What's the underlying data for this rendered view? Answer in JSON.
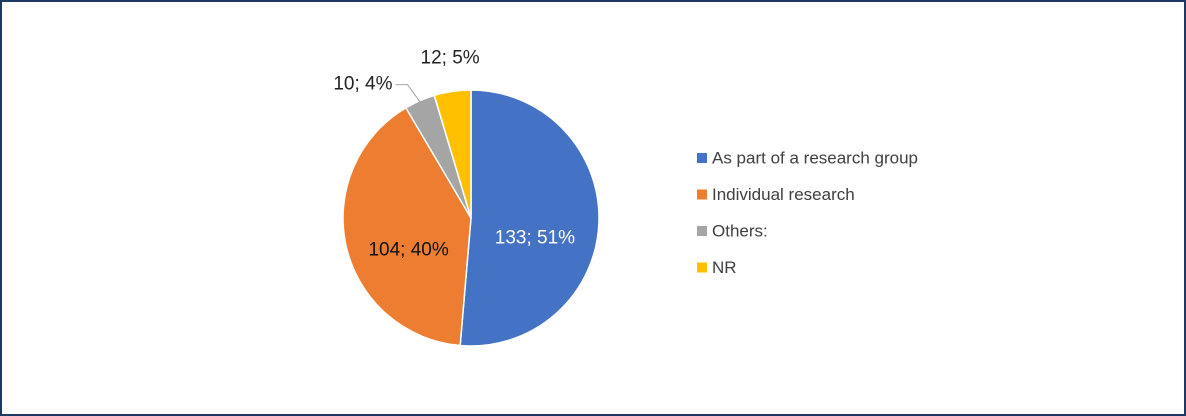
{
  "chart_data": {
    "type": "pie",
    "categories": [
      "As part of a research group",
      "Individual research",
      "Others:",
      "NR"
    ],
    "values": [
      133,
      104,
      10,
      12
    ],
    "value_labels": [
      "133; 51%",
      "104; 40%",
      "10; 4%",
      "12; 5%"
    ],
    "colors": [
      "#4472c4",
      "#ed7d31",
      "#a5a5a5",
      "#ffc000"
    ],
    "legend": "right"
  }
}
